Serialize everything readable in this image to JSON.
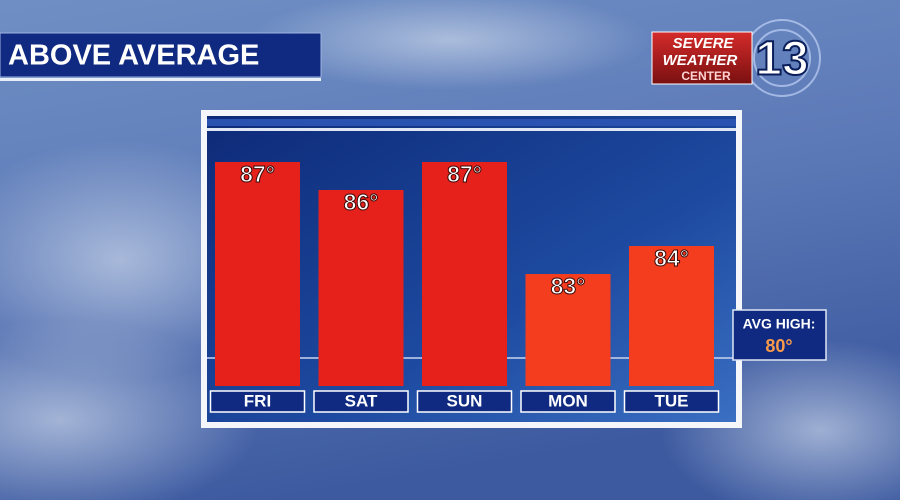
{
  "chart_data": {
    "type": "bar",
    "title": "ABOVE AVERAGE",
    "categories": [
      "FRI",
      "SAT",
      "SUN",
      "MON",
      "TUE"
    ],
    "values": [
      87,
      86,
      87,
      83,
      84
    ],
    "value_labels": [
      "87°",
      "86°",
      "87°",
      "83°",
      "84°"
    ],
    "colors": [
      "#e6201b",
      "#e6201b",
      "#e6201b",
      "#f43c1f",
      "#f43c1f"
    ],
    "ylim": [
      79,
      88
    ],
    "reference": {
      "label": "AVG HIGH:",
      "value": 80,
      "value_label": "80°"
    }
  },
  "logo": {
    "line1": "SEVERE",
    "line2": "WEATHER",
    "line3": "CENTER",
    "number": "13"
  }
}
